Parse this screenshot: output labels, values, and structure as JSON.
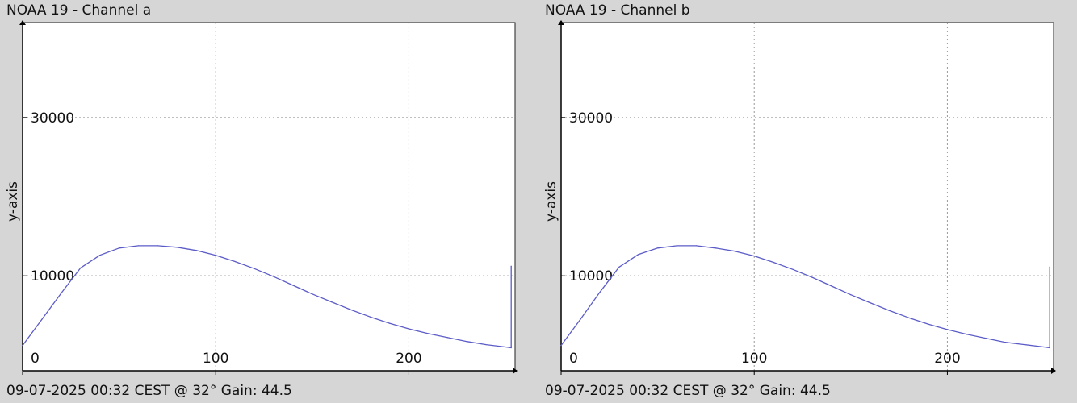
{
  "chart_data": [
    {
      "type": "line",
      "title": "NOAA 19 - Channel a",
      "footer": "09-07-2025 00:32 CEST @ 32° Gain: 44.5",
      "xlabel": "",
      "ylabel": "y-axis",
      "xlim": [
        0,
        255
      ],
      "ylim": [
        -2000,
        42000
      ],
      "xticks": [
        0,
        100,
        200
      ],
      "yticks": [
        10000,
        30000
      ],
      "xtick_labels": [
        "0",
        "100",
        "200"
      ],
      "ytick_labels": [
        "10000",
        "30000"
      ],
      "grid": true,
      "line_color": "#5c5cc8",
      "series": [
        {
          "x": [
            0,
            10,
            20,
            30,
            40,
            50,
            60,
            70,
            80,
            90,
            100,
            110,
            120,
            130,
            140,
            150,
            160,
            170,
            180,
            190,
            200,
            210,
            220,
            230,
            240,
            250,
            253,
            253,
            253
          ],
          "y": [
            1200,
            4500,
            7800,
            11000,
            12600,
            13500,
            13800,
            13800,
            13600,
            13200,
            12600,
            11800,
            10900,
            9900,
            8800,
            7700,
            6700,
            5700,
            4800,
            4000,
            3300,
            2700,
            2200,
            1700,
            1300,
            1000,
            900,
            11200,
            900
          ]
        }
      ]
    },
    {
      "type": "line",
      "title": "NOAA 19 - Channel b",
      "footer": "09-07-2025 00:32 CEST @ 32° Gain: 44.5",
      "xlabel": "",
      "ylabel": "y-axis",
      "xlim": [
        0,
        255
      ],
      "ylim": [
        -2000,
        42000
      ],
      "xticks": [
        0,
        100,
        200
      ],
      "yticks": [
        10000,
        30000
      ],
      "xtick_labels": [
        "0",
        "100",
        "200"
      ],
      "ytick_labels": [
        "10000",
        "30000"
      ],
      "grid": true,
      "line_color": "#5c5cc8",
      "series": [
        {
          "x": [
            0,
            10,
            20,
            30,
            40,
            50,
            60,
            70,
            80,
            90,
            100,
            110,
            120,
            130,
            140,
            150,
            160,
            170,
            180,
            190,
            200,
            210,
            220,
            230,
            240,
            250,
            253,
            253,
            253
          ],
          "y": [
            1200,
            4500,
            7900,
            11100,
            12700,
            13500,
            13800,
            13800,
            13500,
            13100,
            12500,
            11700,
            10800,
            9800,
            8700,
            7600,
            6600,
            5600,
            4700,
            3900,
            3200,
            2600,
            2100,
            1600,
            1300,
            1000,
            900,
            11100,
            900
          ]
        }
      ]
    }
  ]
}
